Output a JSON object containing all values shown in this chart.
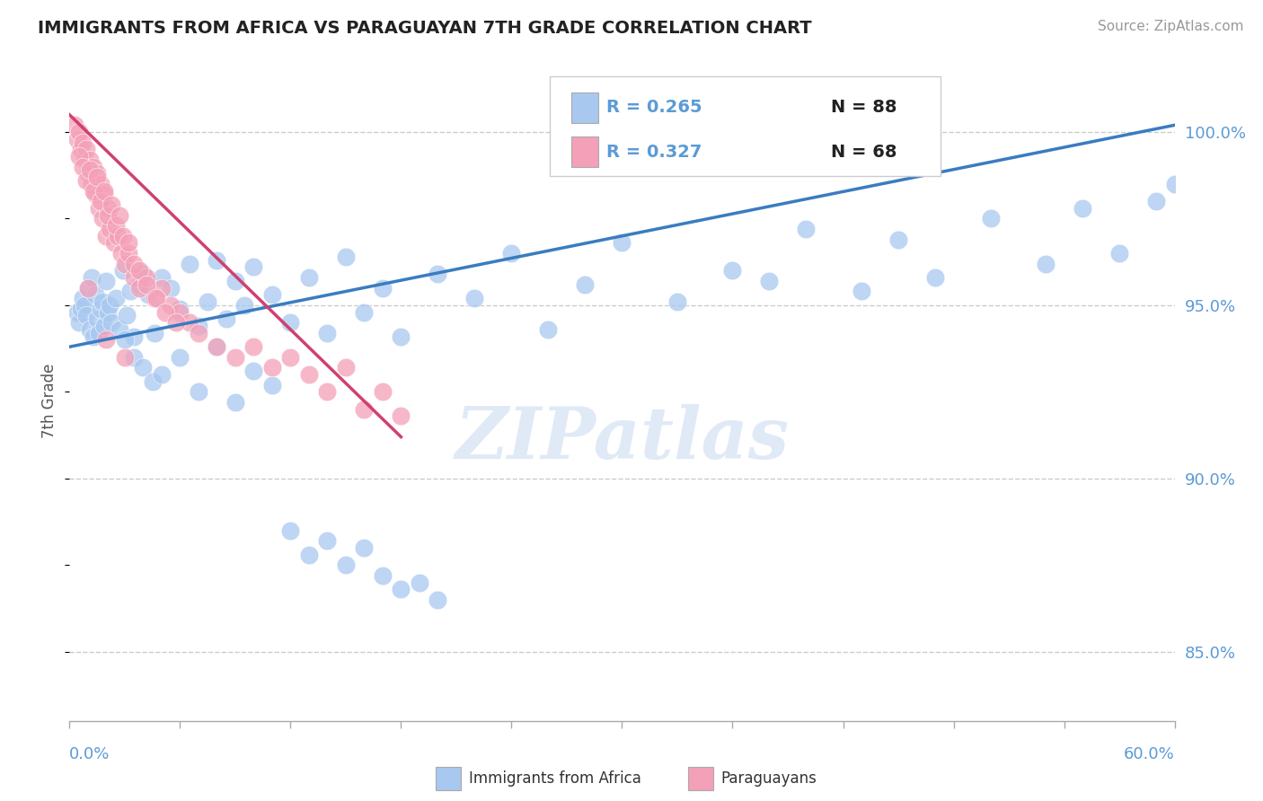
{
  "title": "IMMIGRANTS FROM AFRICA VS PARAGUAYAN 7TH GRADE CORRELATION CHART",
  "source_text": "Source: ZipAtlas.com",
  "ylabel": "7th Grade",
  "xmin": 0.0,
  "xmax": 60.0,
  "ymin": 83.0,
  "ymax": 101.5,
  "yticks": [
    85.0,
    90.0,
    95.0,
    100.0
  ],
  "ytick_labels": [
    "85.0%",
    "90.0%",
    "95.0%",
    "100.0%"
  ],
  "legend_r1": "R = 0.265",
  "legend_n1": "N = 88",
  "legend_r2": "R = 0.327",
  "legend_n2": "N = 68",
  "blue_color": "#A8C8F0",
  "pink_color": "#F4A0B8",
  "blue_line_color": "#3A7CC0",
  "pink_line_color": "#D04070",
  "axis_label_color": "#5B9BD5",
  "watermark_text": "ZIPatlas",
  "blue_x": [
    0.4,
    0.5,
    0.6,
    0.7,
    0.8,
    0.9,
    1.0,
    1.1,
    1.2,
    1.3,
    1.4,
    1.5,
    1.6,
    1.7,
    1.8,
    1.9,
    2.0,
    2.1,
    2.2,
    2.3,
    2.5,
    2.7,
    2.9,
    3.1,
    3.3,
    3.5,
    3.8,
    4.0,
    4.3,
    4.6,
    5.0,
    5.5,
    6.0,
    6.5,
    7.0,
    7.5,
    8.0,
    8.5,
    9.0,
    9.5,
    10.0,
    11.0,
    12.0,
    13.0,
    14.0,
    15.0,
    16.0,
    17.0,
    18.0,
    20.0,
    22.0,
    24.0,
    26.0,
    28.0,
    30.0,
    33.0,
    36.0,
    38.0,
    40.0,
    43.0,
    45.0,
    47.0,
    50.0,
    53.0,
    55.0,
    57.0,
    59.0,
    60.0,
    3.0,
    3.5,
    4.0,
    4.5,
    5.0,
    6.0,
    7.0,
    8.0,
    9.0,
    10.0,
    11.0,
    12.0,
    13.0,
    14.0,
    15.0,
    16.0,
    17.0,
    18.0,
    19.0,
    20.0
  ],
  "blue_y": [
    94.8,
    94.5,
    94.9,
    95.2,
    95.0,
    94.7,
    95.5,
    94.3,
    95.8,
    94.1,
    95.3,
    94.6,
    94.2,
    94.9,
    95.1,
    94.4,
    95.7,
    94.8,
    95.0,
    94.5,
    95.2,
    94.3,
    96.0,
    94.7,
    95.4,
    94.1,
    95.6,
    95.9,
    95.3,
    94.2,
    95.8,
    95.5,
    94.9,
    96.2,
    94.4,
    95.1,
    96.3,
    94.6,
    95.7,
    95.0,
    96.1,
    95.3,
    94.5,
    95.8,
    94.2,
    96.4,
    94.8,
    95.5,
    94.1,
    95.9,
    95.2,
    96.5,
    94.3,
    95.6,
    96.8,
    95.1,
    96.0,
    95.7,
    97.2,
    95.4,
    96.9,
    95.8,
    97.5,
    96.2,
    97.8,
    96.5,
    98.0,
    98.5,
    94.0,
    93.5,
    93.2,
    92.8,
    93.0,
    93.5,
    92.5,
    93.8,
    92.2,
    93.1,
    92.7,
    88.5,
    87.8,
    88.2,
    87.5,
    88.0,
    87.2,
    86.8,
    87.0,
    86.5
  ],
  "pink_x": [
    0.3,
    0.4,
    0.5,
    0.6,
    0.7,
    0.8,
    0.9,
    1.0,
    1.1,
    1.2,
    1.3,
    1.4,
    1.5,
    1.6,
    1.7,
    1.8,
    1.9,
    2.0,
    2.1,
    2.2,
    2.4,
    2.6,
    2.8,
    3.0,
    3.2,
    3.5,
    3.8,
    4.2,
    4.6,
    5.0,
    5.5,
    6.0,
    6.5,
    7.0,
    8.0,
    9.0,
    10.0,
    11.0,
    12.0,
    13.0,
    14.0,
    15.0,
    16.0,
    17.0,
    18.0,
    0.5,
    0.7,
    0.9,
    1.1,
    1.3,
    1.5,
    1.7,
    1.9,
    2.1,
    2.3,
    2.5,
    2.7,
    2.9,
    3.2,
    3.5,
    3.8,
    4.2,
    4.7,
    5.2,
    5.8,
    1.0,
    2.0,
    3.0
  ],
  "pink_y": [
    100.2,
    99.8,
    100.0,
    99.5,
    99.7,
    99.2,
    99.5,
    98.8,
    99.2,
    98.5,
    99.0,
    98.2,
    98.8,
    97.8,
    98.5,
    97.5,
    98.2,
    97.0,
    97.8,
    97.2,
    96.8,
    97.0,
    96.5,
    96.2,
    96.5,
    95.8,
    95.5,
    95.8,
    95.2,
    95.5,
    95.0,
    94.8,
    94.5,
    94.2,
    93.8,
    93.5,
    93.8,
    93.2,
    93.5,
    93.0,
    92.5,
    93.2,
    92.0,
    92.5,
    91.8,
    99.3,
    99.0,
    98.6,
    98.9,
    98.3,
    98.7,
    98.0,
    98.3,
    97.6,
    97.9,
    97.3,
    97.6,
    97.0,
    96.8,
    96.2,
    96.0,
    95.6,
    95.2,
    94.8,
    94.5,
    95.5,
    94.0,
    93.5
  ],
  "blue_trend_x": [
    0.0,
    60.0
  ],
  "blue_trend_y": [
    93.8,
    100.2
  ],
  "pink_trend_x": [
    0.0,
    18.0
  ],
  "pink_trend_y": [
    100.5,
    91.2
  ]
}
